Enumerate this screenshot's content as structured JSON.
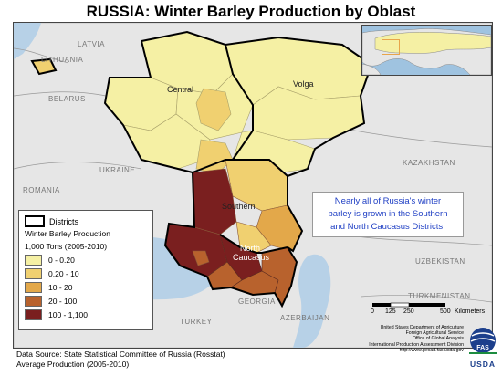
{
  "title": "RUSSIA:  Winter Barley Production by Oblast",
  "map": {
    "country_labels": {
      "latvia": "LATVIA",
      "lithuania": "LITHUANIA",
      "belarus": "BELARUS",
      "ukraine": "UKRAINE",
      "romania": "ROMANIA",
      "kazakhstan": "KAZAKHSTAN",
      "georgia": "GEORGIA",
      "turkey": "TURKEY",
      "azerbaijan": "AZERBAIJAN",
      "uzbekistan": "UZBEKISTAN",
      "turkmenistan": "TURKMENISTAN"
    },
    "district_labels": {
      "central": "Central",
      "volga": "Volga",
      "southern": "Southern",
      "north_caucasus_1": "North",
      "north_caucasus_2": "Caucasus"
    }
  },
  "legend": {
    "districts_label": "Districts",
    "production_title": "Winter Barley Production",
    "units": "1,000 Tons (2005-2010)",
    "classes": [
      {
        "label": "0 - 0.20",
        "color": "#f5f0a4"
      },
      {
        "label": "0.20 - 10",
        "color": "#f0d070"
      },
      {
        "label": "10 - 20",
        "color": "#e3a84a"
      },
      {
        "label": "20 - 100",
        "color": "#b8622d"
      },
      {
        "label": "100 - 1,100",
        "color": "#7a1f1f"
      }
    ]
  },
  "note": {
    "line1": "Nearly all of Russia's winter",
    "line2": "barley is grown in the Southern",
    "line3": "and North Caucasus Districts."
  },
  "scale": {
    "t0": "0",
    "t1": "125",
    "t2": "250",
    "t3": "500",
    "unit": "Kilometers"
  },
  "credits": {
    "line1": "United States Department of Agriculture",
    "line2": "Foreign Agricultural Service",
    "line3": "Office of Global Analysis",
    "line4": "International Production Assessment Division",
    "line5": "http://www.pecad.fas.usda.gov",
    "logo_fas": "FAS",
    "logo_usda": "USDA"
  },
  "source": {
    "line1": "Data Source: State Statistical Committee of Russia (Rosstat)",
    "line2": "Average Production (2005-2010)"
  },
  "colors": {
    "water": "#b7d1e7",
    "land_other": "#e6e6e6",
    "accent_blue": "#1f3fc4"
  }
}
